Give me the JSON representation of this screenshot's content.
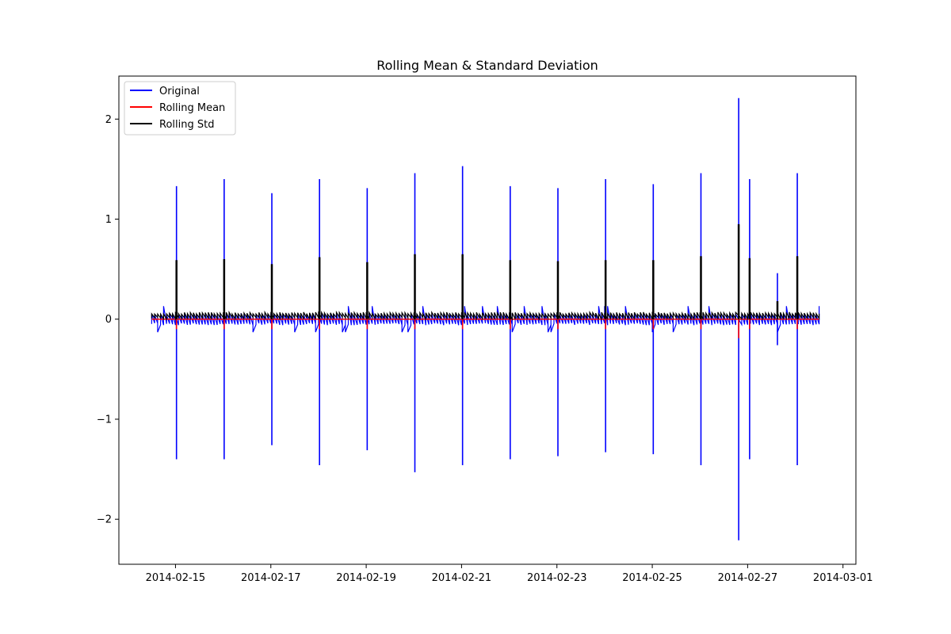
{
  "chart_data": {
    "type": "line",
    "title": "Rolling Mean & Standard Deviation",
    "xlabel": "",
    "ylabel": "",
    "x_axis_type": "date",
    "xlim": [
      "2014-02-13T19:30",
      "2014-03-01T06:30"
    ],
    "ylim": [
      -2.45,
      2.43
    ],
    "x_ticks": [
      "2014-02-15",
      "2014-02-17",
      "2014-02-19",
      "2014-02-21",
      "2014-02-23",
      "2014-02-25",
      "2014-02-27",
      "2014-03-01"
    ],
    "y_ticks": [
      2,
      1,
      0,
      -1,
      -2
    ],
    "y_tick_labels": [
      "2",
      "1",
      "0",
      "−1",
      "−2"
    ],
    "grid": false,
    "legend": {
      "position": "top-left",
      "entries": [
        {
          "label": "Original",
          "color": "#0000ff"
        },
        {
          "label": "Rolling Mean",
          "color": "#ff0000"
        },
        {
          "label": "Rolling Std",
          "color": "#000000"
        }
      ]
    },
    "x_range": [
      "2014-02-14T12:00",
      "2014-02-28T12:00"
    ],
    "spike_times": [
      "2014-02-15T00:30",
      "2014-02-16T00:30",
      "2014-02-17T00:30",
      "2014-02-18T00:30",
      "2014-02-19T00:30",
      "2014-02-20T00:30",
      "2014-02-21T00:30",
      "2014-02-22T00:30",
      "2014-02-23T00:30",
      "2014-02-24T00:30",
      "2014-02-25T00:30",
      "2014-02-26T00:30",
      "2014-02-26T19:30",
      "2014-02-27T01:00",
      "2014-02-28T01:00"
    ],
    "series": [
      {
        "name": "Original",
        "color": "#0000ff",
        "baseline_band": [
          -0.06,
          0.06
        ],
        "spikes": [
          {
            "t": "2014-02-15T00:30",
            "max": 1.33,
            "min": -1.4
          },
          {
            "t": "2014-02-16T00:30",
            "max": 1.4,
            "min": -1.4
          },
          {
            "t": "2014-02-17T00:30",
            "max": 1.26,
            "min": -1.26
          },
          {
            "t": "2014-02-18T00:30",
            "max": 1.4,
            "min": -1.46
          },
          {
            "t": "2014-02-19T00:30",
            "max": 1.31,
            "min": -1.31
          },
          {
            "t": "2014-02-20T00:30",
            "max": 1.46,
            "min": -1.53
          },
          {
            "t": "2014-02-21T00:30",
            "max": 1.53,
            "min": -1.46
          },
          {
            "t": "2014-02-22T00:30",
            "max": 1.33,
            "min": -1.4
          },
          {
            "t": "2014-02-23T00:30",
            "max": 1.31,
            "min": -1.37
          },
          {
            "t": "2014-02-24T00:30",
            "max": 1.4,
            "min": -1.33
          },
          {
            "t": "2014-02-25T00:30",
            "max": 1.35,
            "min": -1.35
          },
          {
            "t": "2014-02-26T00:30",
            "max": 1.46,
            "min": -1.46
          },
          {
            "t": "2014-02-26T19:30",
            "max": 2.21,
            "min": -2.21
          },
          {
            "t": "2014-02-27T01:00",
            "max": 1.4,
            "min": -1.4
          },
          {
            "t": "2014-02-27T15:00",
            "max": 0.46,
            "min": -0.26
          },
          {
            "t": "2014-02-28T01:00",
            "max": 1.46,
            "min": -1.46
          }
        ]
      },
      {
        "name": "Rolling Mean",
        "color": "#ff0000",
        "baseline": 0.0,
        "spikes": [
          {
            "t": "2014-02-15T00:30",
            "max": 0.05,
            "min": -0.1
          },
          {
            "t": "2014-02-16T00:30",
            "max": 0.05,
            "min": -0.1
          },
          {
            "t": "2014-02-17T00:30",
            "max": 0.05,
            "min": -0.1
          },
          {
            "t": "2014-02-18T00:30",
            "max": 0.05,
            "min": -0.1
          },
          {
            "t": "2014-02-19T00:30",
            "max": 0.05,
            "min": -0.1
          },
          {
            "t": "2014-02-20T00:30",
            "max": 0.05,
            "min": -0.1
          },
          {
            "t": "2014-02-21T00:30",
            "max": 0.05,
            "min": -0.1
          },
          {
            "t": "2014-02-22T00:30",
            "max": 0.05,
            "min": -0.1
          },
          {
            "t": "2014-02-23T00:30",
            "max": 0.05,
            "min": -0.1
          },
          {
            "t": "2014-02-24T00:30",
            "max": 0.05,
            "min": -0.1
          },
          {
            "t": "2014-02-25T00:30",
            "max": 0.05,
            "min": -0.1
          },
          {
            "t": "2014-02-26T00:30",
            "max": 0.05,
            "min": -0.1
          },
          {
            "t": "2014-02-26T19:30",
            "max": 0.05,
            "min": -0.19
          },
          {
            "t": "2014-02-27T01:00",
            "max": 0.05,
            "min": -0.1
          },
          {
            "t": "2014-02-28T01:00",
            "max": 0.05,
            "min": -0.1
          }
        ]
      },
      {
        "name": "Rolling Std",
        "color": "#000000",
        "baseline_band": [
          0.0,
          0.07
        ],
        "spikes": [
          {
            "t": "2014-02-15T00:30",
            "max": 0.59
          },
          {
            "t": "2014-02-16T00:30",
            "max": 0.6
          },
          {
            "t": "2014-02-17T00:30",
            "max": 0.55
          },
          {
            "t": "2014-02-18T00:30",
            "max": 0.62
          },
          {
            "t": "2014-02-19T00:30",
            "max": 0.57
          },
          {
            "t": "2014-02-20T00:30",
            "max": 0.65
          },
          {
            "t": "2014-02-21T00:30",
            "max": 0.65
          },
          {
            "t": "2014-02-22T00:30",
            "max": 0.59
          },
          {
            "t": "2014-02-23T00:30",
            "max": 0.58
          },
          {
            "t": "2014-02-24T00:30",
            "max": 0.59
          },
          {
            "t": "2014-02-25T00:30",
            "max": 0.59
          },
          {
            "t": "2014-02-26T00:30",
            "max": 0.63
          },
          {
            "t": "2014-02-26T19:30",
            "max": 0.95
          },
          {
            "t": "2014-02-27T01:00",
            "max": 0.61
          },
          {
            "t": "2014-02-27T15:00",
            "max": 0.18
          },
          {
            "t": "2014-02-28T01:00",
            "max": 0.63
          }
        ]
      }
    ]
  }
}
